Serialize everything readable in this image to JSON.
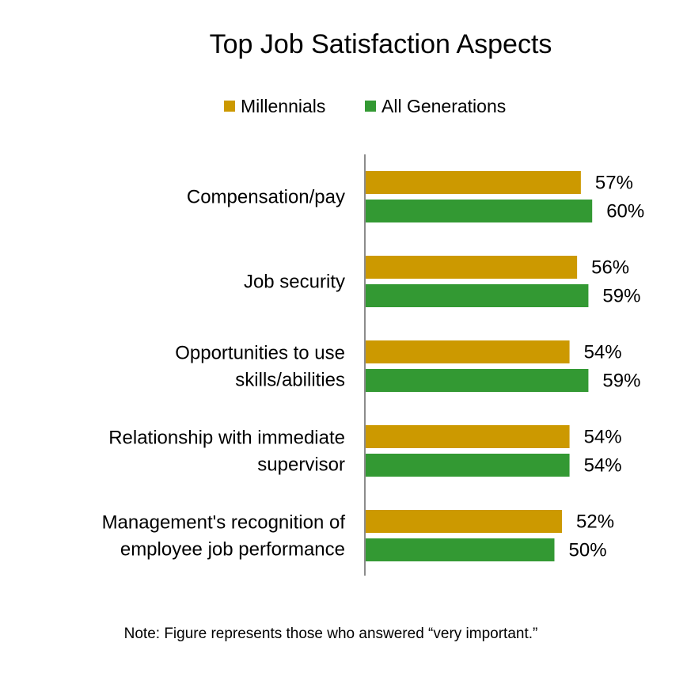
{
  "chart_data": {
    "type": "bar",
    "orientation": "horizontal",
    "title": "Top Job Satisfaction Aspects",
    "xlabel": "",
    "ylabel": "",
    "xlim": [
      0,
      100
    ],
    "grid": false,
    "legend_position": "top",
    "value_suffix": "%",
    "categories": [
      [
        "Compensation/pay"
      ],
      [
        "Job security"
      ],
      [
        "Opportunities to use",
        "skills/abilities"
      ],
      [
        "Relationship with immediate",
        "supervisor"
      ],
      [
        "Management's recognition of",
        "employee job performance"
      ]
    ],
    "series": [
      {
        "name": "Millennials",
        "color": "#CC9900",
        "values": [
          57,
          56,
          54,
          54,
          52
        ]
      },
      {
        "name": "All Generations",
        "color": "#339933",
        "values": [
          60,
          59,
          59,
          54,
          50
        ]
      }
    ],
    "note": "Note: Figure represents those who answered “very important.”"
  }
}
